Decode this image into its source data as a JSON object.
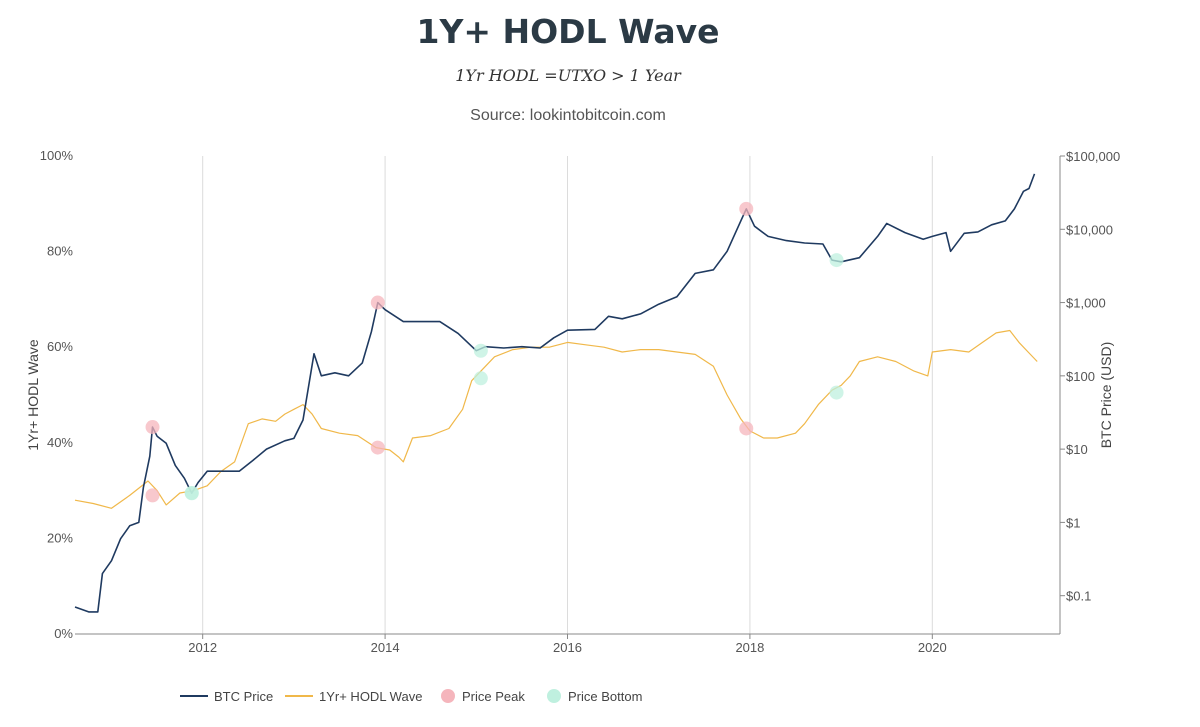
{
  "chart_data": {
    "type": "line",
    "title": "1Y+ HODL Wave",
    "subtitle": "1Yr HODL =UTXO > 1 Year",
    "source": "Source: lookintobitcoin.com",
    "x_axis": {
      "ticks": [
        2012,
        2014,
        2016,
        2018,
        2020
      ],
      "range": [
        2010.6,
        2021.4
      ]
    },
    "y_left": {
      "label": "1Yr+ HODL Wave",
      "ticks": [
        "0%",
        "20%",
        "40%",
        "60%",
        "80%",
        "100%"
      ],
      "range": [
        0,
        100
      ]
    },
    "y_right": {
      "label": "BTC Price (USD)",
      "scale": "log",
      "ticks": [
        "$0.1",
        "$1",
        "$10",
        "$100",
        "$1,000",
        "$10,000",
        "$100,000"
      ],
      "range": [
        0.03,
        100000
      ]
    },
    "grid": "vertical",
    "legend": {
      "placement": "bottom",
      "entries": [
        "BTC Price",
        "1Yr+ HODL Wave",
        "Price Peak",
        "Price Bottom"
      ]
    },
    "series": [
      {
        "name": "BTC Price",
        "axis": "right",
        "color": "#1f3a60",
        "points": [
          [
            2010.6,
            0.07
          ],
          [
            2010.75,
            0.06
          ],
          [
            2010.85,
            0.06
          ],
          [
            2010.9,
            0.2
          ],
          [
            2011.0,
            0.3
          ],
          [
            2011.1,
            0.6
          ],
          [
            2011.2,
            0.9
          ],
          [
            2011.3,
            1.0
          ],
          [
            2011.35,
            3
          ],
          [
            2011.42,
            8
          ],
          [
            2011.45,
            20
          ],
          [
            2011.5,
            15
          ],
          [
            2011.6,
            12
          ],
          [
            2011.7,
            6
          ],
          [
            2011.8,
            4
          ],
          [
            2011.88,
            2.5
          ],
          [
            2011.95,
            3.5
          ],
          [
            2012.05,
            5
          ],
          [
            2012.2,
            5
          ],
          [
            2012.4,
            5
          ],
          [
            2012.55,
            7
          ],
          [
            2012.7,
            10
          ],
          [
            2012.9,
            13
          ],
          [
            2013.0,
            14
          ],
          [
            2013.1,
            25
          ],
          [
            2013.22,
            200
          ],
          [
            2013.3,
            100
          ],
          [
            2013.45,
            110
          ],
          [
            2013.6,
            100
          ],
          [
            2013.75,
            150
          ],
          [
            2013.85,
            400
          ],
          [
            2013.92,
            1000
          ],
          [
            2014.0,
            800
          ],
          [
            2014.2,
            550
          ],
          [
            2014.4,
            550
          ],
          [
            2014.6,
            550
          ],
          [
            2014.8,
            380
          ],
          [
            2015.0,
            220
          ],
          [
            2015.1,
            250
          ],
          [
            2015.3,
            240
          ],
          [
            2015.5,
            250
          ],
          [
            2015.7,
            240
          ],
          [
            2015.85,
            330
          ],
          [
            2016.0,
            420
          ],
          [
            2016.3,
            430
          ],
          [
            2016.45,
            650
          ],
          [
            2016.6,
            600
          ],
          [
            2016.8,
            700
          ],
          [
            2017.0,
            950
          ],
          [
            2017.2,
            1200
          ],
          [
            2017.4,
            2500
          ],
          [
            2017.6,
            2800
          ],
          [
            2017.75,
            5000
          ],
          [
            2017.9,
            13000
          ],
          [
            2017.96,
            19000
          ],
          [
            2018.05,
            11000
          ],
          [
            2018.2,
            8000
          ],
          [
            2018.4,
            7000
          ],
          [
            2018.6,
            6500
          ],
          [
            2018.8,
            6300
          ],
          [
            2018.9,
            3800
          ],
          [
            2019.0,
            3600
          ],
          [
            2019.2,
            4100
          ],
          [
            2019.4,
            8000
          ],
          [
            2019.5,
            12000
          ],
          [
            2019.7,
            9000
          ],
          [
            2019.9,
            7300
          ],
          [
            2020.0,
            8000
          ],
          [
            2020.15,
            9000
          ],
          [
            2020.2,
            5000
          ],
          [
            2020.35,
            8800
          ],
          [
            2020.5,
            9200
          ],
          [
            2020.65,
            11500
          ],
          [
            2020.8,
            13000
          ],
          [
            2020.9,
            19000
          ],
          [
            2021.0,
            33000
          ],
          [
            2021.06,
            36000
          ],
          [
            2021.12,
            57000
          ]
        ]
      },
      {
        "name": "1Yr+ HODL Wave",
        "axis": "left",
        "color": "#f0b84a",
        "points": [
          [
            2010.6,
            28
          ],
          [
            2010.8,
            27.3
          ],
          [
            2011.0,
            26.3
          ],
          [
            2011.2,
            29
          ],
          [
            2011.4,
            32
          ],
          [
            2011.5,
            30
          ],
          [
            2011.6,
            27
          ],
          [
            2011.75,
            29.5
          ],
          [
            2011.9,
            30
          ],
          [
            2012.05,
            31
          ],
          [
            2012.2,
            34
          ],
          [
            2012.35,
            36
          ],
          [
            2012.5,
            44
          ],
          [
            2012.65,
            45
          ],
          [
            2012.8,
            44.5
          ],
          [
            2012.9,
            46
          ],
          [
            2013.0,
            47
          ],
          [
            2013.1,
            48
          ],
          [
            2013.2,
            46
          ],
          [
            2013.3,
            43
          ],
          [
            2013.5,
            42
          ],
          [
            2013.7,
            41.5
          ],
          [
            2013.9,
            39
          ],
          [
            2014.05,
            38.5
          ],
          [
            2014.15,
            37
          ],
          [
            2014.2,
            36
          ],
          [
            2014.3,
            41
          ],
          [
            2014.5,
            41.5
          ],
          [
            2014.7,
            43
          ],
          [
            2014.85,
            47
          ],
          [
            2014.95,
            53
          ],
          [
            2015.05,
            55
          ],
          [
            2015.2,
            58
          ],
          [
            2015.4,
            59.5
          ],
          [
            2015.6,
            60
          ],
          [
            2015.8,
            60
          ],
          [
            2016.0,
            61
          ],
          [
            2016.2,
            60.5
          ],
          [
            2016.4,
            60
          ],
          [
            2016.6,
            59
          ],
          [
            2016.8,
            59.5
          ],
          [
            2017.0,
            59.5
          ],
          [
            2017.2,
            59
          ],
          [
            2017.4,
            58.5
          ],
          [
            2017.6,
            56
          ],
          [
            2017.75,
            50
          ],
          [
            2017.9,
            45
          ],
          [
            2018.0,
            42.5
          ],
          [
            2018.15,
            41
          ],
          [
            2018.3,
            41
          ],
          [
            2018.5,
            42
          ],
          [
            2018.6,
            44
          ],
          [
            2018.75,
            48
          ],
          [
            2018.9,
            51
          ],
          [
            2019.0,
            52
          ],
          [
            2019.1,
            54
          ],
          [
            2019.2,
            57
          ],
          [
            2019.4,
            58
          ],
          [
            2019.6,
            57
          ],
          [
            2019.8,
            55
          ],
          [
            2019.95,
            54
          ],
          [
            2020.0,
            59
          ],
          [
            2020.2,
            59.5
          ],
          [
            2020.4,
            59
          ],
          [
            2020.55,
            61
          ],
          [
            2020.7,
            63
          ],
          [
            2020.85,
            63.5
          ],
          [
            2020.95,
            61
          ],
          [
            2021.05,
            59
          ],
          [
            2021.15,
            57
          ]
        ]
      }
    ],
    "markers": [
      {
        "type": "Price Peak",
        "color": "#f5b5bc",
        "axis": "right",
        "x": 2011.45,
        "y": 20
      },
      {
        "type": "Price Peak",
        "color": "#f5b5bc",
        "axis": "right",
        "x": 2013.92,
        "y": 1000
      },
      {
        "type": "Price Peak",
        "color": "#f5b5bc",
        "axis": "right",
        "x": 2017.96,
        "y": 19000
      },
      {
        "type": "Price Peak",
        "color": "#f5b5bc",
        "axis": "left",
        "x": 2011.45,
        "y": 29
      },
      {
        "type": "Price Peak",
        "color": "#f5b5bc",
        "axis": "left",
        "x": 2013.92,
        "y": 39
      },
      {
        "type": "Price Peak",
        "color": "#f5b5bc",
        "axis": "left",
        "x": 2017.96,
        "y": 43
      },
      {
        "type": "Price Bottom",
        "color": "#bff0df",
        "axis": "right",
        "x": 2011.88,
        "y": 2.5
      },
      {
        "type": "Price Bottom",
        "color": "#bff0df",
        "axis": "right",
        "x": 2015.05,
        "y": 220
      },
      {
        "type": "Price Bottom",
        "color": "#bff0df",
        "axis": "right",
        "x": 2018.95,
        "y": 3800
      },
      {
        "type": "Price Bottom",
        "color": "#bff0df",
        "axis": "left",
        "x": 2011.88,
        "y": 29.5
      },
      {
        "type": "Price Bottom",
        "color": "#bff0df",
        "axis": "left",
        "x": 2015.05,
        "y": 53.5
      },
      {
        "type": "Price Bottom",
        "color": "#bff0df",
        "axis": "left",
        "x": 2018.95,
        "y": 50.5
      }
    ]
  }
}
